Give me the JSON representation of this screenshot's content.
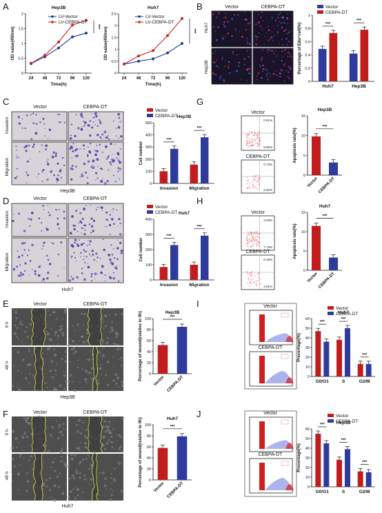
{
  "panels": [
    "A",
    "B",
    "C",
    "D",
    "E",
    "F",
    "G",
    "H",
    "I",
    "J"
  ],
  "colors": {
    "vector": "#1c3a9e",
    "cebpa": "#cc1f1f",
    "vector_bar": "#2f3b9c",
    "cebpa_bar": "#c21d1d",
    "micro_bg": "#d7d3d8",
    "wound_bg": "#4e4e4e",
    "edu_bg": "#1a1428"
  },
  "labels": {
    "vector": "Vector",
    "cebpa": "CEBPA-DT",
    "lv_vector": "LV-Vector",
    "lv_cebpa": "LV-CEBPA-DT",
    "huh7": "Huh7",
    "hep3b": "Hep3B",
    "invasion": "Invasion",
    "migration": "Migration",
    "h0": "0 h",
    "h48": "48 h",
    "sig": "***"
  },
  "chart_data": [
    {
      "id": "A1",
      "type": "line",
      "title": "Hep3B",
      "x": [
        24,
        48,
        72,
        96,
        120
      ],
      "xlabel": "Time(h)",
      "ylabel": "OD value(450nm)",
      "ylim": [
        0,
        2
      ],
      "yticks": [
        0,
        0.5,
        1,
        1.5,
        2
      ],
      "series": [
        {
          "name": "LV-Vector",
          "values": [
            0.32,
            0.55,
            0.85,
            1.22,
            1.35
          ]
        },
        {
          "name": "LV-CEBPA-DT",
          "values": [
            0.33,
            0.6,
            1.05,
            1.62,
            1.78
          ]
        }
      ]
    },
    {
      "id": "A2",
      "type": "line",
      "title": "Huh7",
      "x": [
        24,
        48,
        72,
        96,
        120
      ],
      "xlabel": "Time(h)",
      "ylabel": "OD value(450nm)",
      "ylim": [
        0,
        2.5
      ],
      "yticks": [
        0,
        0.5,
        1,
        1.5,
        2,
        2.5
      ],
      "series": [
        {
          "name": "LV-Vector",
          "values": [
            0.38,
            0.5,
            0.6,
            0.85,
            1.25
          ]
        },
        {
          "name": "LV-CEBPA-DT",
          "values": [
            0.38,
            0.72,
            0.95,
            1.58,
            2.3
          ]
        }
      ]
    },
    {
      "id": "B",
      "type": "bar",
      "title": "",
      "categories": [
        "Huh7",
        "Hep3B"
      ],
      "ylabel": "Percentage of Edu⁺cell(%)",
      "ylim": [
        0,
        1
      ],
      "yticks": [
        0,
        0.2,
        0.4,
        0.6,
        0.8,
        1
      ],
      "series": [
        {
          "name": "Vector",
          "values": [
            0.49,
            0.42
          ]
        },
        {
          "name": "CEBPA-DT",
          "values": [
            0.73,
            0.78
          ]
        }
      ]
    },
    {
      "id": "C",
      "type": "bar",
      "title": "Hep3B",
      "categories": [
        "Invasion",
        "Migration"
      ],
      "ylabel": "Cell number",
      "ylim": [
        0,
        500
      ],
      "yticks": [
        0,
        100,
        200,
        300,
        400,
        500
      ],
      "series": [
        {
          "name": "Vector",
          "values": [
            100,
            155
          ]
        },
        {
          "name": "CEBPA-DT",
          "values": [
            285,
            380
          ]
        }
      ]
    },
    {
      "id": "D",
      "type": "bar",
      "title": "Huh7",
      "categories": [
        "Invasion",
        "Migration"
      ],
      "ylabel": "Cell number",
      "ylim": [
        0,
        400
      ],
      "yticks": [
        0,
        100,
        200,
        300,
        400
      ],
      "series": [
        {
          "name": "Vector",
          "values": [
            85,
            100
          ]
        },
        {
          "name": "CEBPA-DT",
          "values": [
            230,
            292
          ]
        }
      ]
    },
    {
      "id": "E",
      "type": "bar",
      "title": "Hep3B",
      "categories": [
        "Vector",
        "CEBPA-DT"
      ],
      "ylabel": "Percentage of wound(relative to 0h)",
      "ylim": [
        0,
        100
      ],
      "yticks": [
        0,
        20,
        40,
        60,
        80,
        100
      ],
      "values": [
        52,
        85
      ]
    },
    {
      "id": "F",
      "type": "bar",
      "title": "Huh7",
      "categories": [
        "Vector",
        "CEBPA-DT"
      ],
      "ylabel": "Percentage of wound(relative to 0h)",
      "ylim": [
        0,
        100
      ],
      "yticks": [
        0,
        20,
        40,
        60,
        80,
        100
      ],
      "values": [
        58,
        79
      ]
    },
    {
      "id": "G",
      "type": "bar",
      "title": "Hep3B",
      "categories": [
        "Vector",
        "CEBPA-DT"
      ],
      "ylabel": "Apoptosis rate(%)",
      "ylim": [
        0,
        15
      ],
      "yticks": [
        0,
        5,
        10,
        15
      ],
      "values": [
        9.8,
        3.2
      ]
    },
    {
      "id": "H",
      "type": "bar",
      "title": "Huh7",
      "categories": [
        "Vector",
        "CEBPA-DT"
      ],
      "ylabel": "Apoptosis rate(%)",
      "ylim": [
        0,
        15
      ],
      "yticks": [
        0,
        5,
        10,
        15
      ],
      "values": [
        11.5,
        3.3
      ]
    },
    {
      "id": "I",
      "type": "bar",
      "title": "Huh7",
      "categories": [
        "G0/G1",
        "S",
        "G2/M"
      ],
      "ylabel": "Precentage(%)",
      "ylim": [
        0,
        60
      ],
      "yticks": [
        0,
        10,
        20,
        30,
        40,
        50,
        60
      ],
      "series": [
        {
          "name": "Vector",
          "values": [
            47,
            38,
            13
          ]
        },
        {
          "name": "CEBPA-DT",
          "values": [
            36,
            50,
            13
          ]
        }
      ]
    },
    {
      "id": "J",
      "type": "bar",
      "title": "Hep3B",
      "categories": [
        "G0/G1",
        "S",
        "G2/M"
      ],
      "ylabel": "Precentage(%)",
      "ylim": [
        0,
        60
      ],
      "yticks": [
        0,
        10,
        20,
        30,
        40,
        50,
        60
      ],
      "series": [
        {
          "name": "Vector",
          "values": [
            55,
            28,
            16
          ]
        },
        {
          "name": "CEBPA-DT",
          "values": [
            45,
            39,
            15
          ]
        }
      ]
    }
  ],
  "flow": {
    "G": [
      {
        "title": "Vector",
        "q_top": "0.61%",
        "q_bot": "8.86%"
      },
      {
        "title": "CEBPA-DT",
        "q_top": "0.73%",
        "q_bot": "2.52%"
      }
    ],
    "H": [
      {
        "title": "Vector",
        "q_top": "3.03%",
        "q_bot": "7.73%"
      },
      {
        "title": "CEBPA-DT",
        "q_top": "0.15%",
        "q_bot": "2.61%"
      }
    ]
  }
}
